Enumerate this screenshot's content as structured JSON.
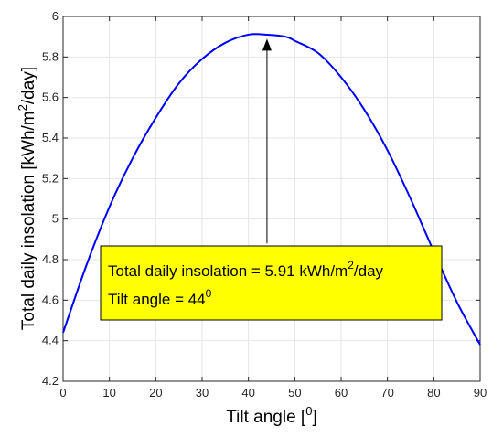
{
  "chart_data": {
    "type": "line",
    "xlabel": {
      "text": "Tilt angle [",
      "sup": "0",
      "end": "]"
    },
    "ylabel": {
      "text": "Total daily insolation [kWh/m",
      "sup": "2",
      "end": "/day]"
    },
    "xlim": [
      0,
      90
    ],
    "ylim": [
      4.2,
      6.0
    ],
    "xticks": [
      0,
      10,
      20,
      30,
      40,
      50,
      60,
      70,
      80,
      90
    ],
    "yticks": [
      4.2,
      4.4,
      4.6,
      4.8,
      5.0,
      5.2,
      5.4,
      5.6,
      5.8,
      6.0
    ],
    "ytick_labels": [
      "4.2",
      "4.4",
      "4.6",
      "4.8",
      "5",
      "5.2",
      "5.4",
      "5.6",
      "5.8",
      "6"
    ],
    "grid": true,
    "series": [
      {
        "color": "#0000ff",
        "x": [
          0,
          5,
          10,
          15,
          20,
          25,
          30,
          35,
          40,
          44,
          48,
          50,
          55,
          60,
          65,
          70,
          75,
          80,
          85,
          90
        ],
        "y": [
          4.44,
          4.77,
          5.06,
          5.3,
          5.5,
          5.67,
          5.79,
          5.87,
          5.91,
          5.91,
          5.9,
          5.88,
          5.82,
          5.7,
          5.54,
          5.34,
          5.1,
          4.84,
          4.59,
          4.38
        ]
      }
    ],
    "annotation": {
      "line1_text": "Total daily insolation = 5.91 kWh/m",
      "line1_sup": "2",
      "line1_end": "/day",
      "line2_text": "Tilt angle = 44",
      "line2_sup": "0",
      "box_color": "#ffff00",
      "arrow_x": 44,
      "arrow_y_start": 4.88,
      "arrow_y_end": 5.89
    }
  }
}
